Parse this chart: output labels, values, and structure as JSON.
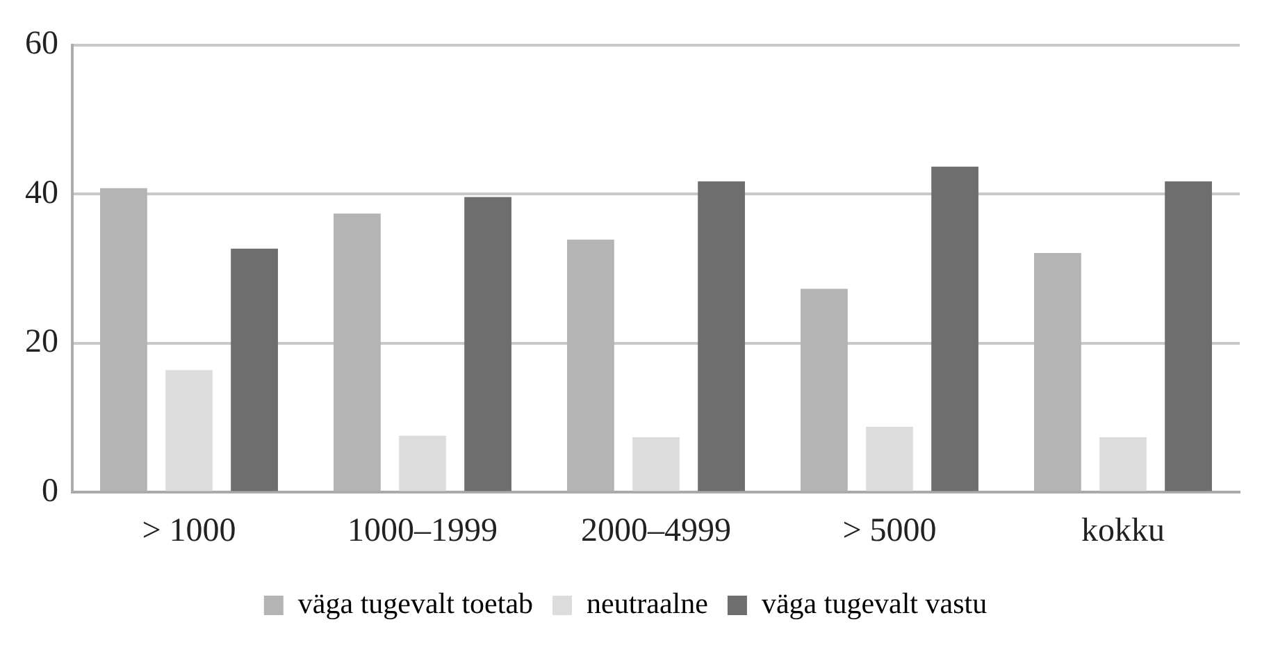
{
  "chart_data": {
    "type": "bar",
    "categories": [
      "> 1000",
      "1000–1999",
      "2000–4999",
      "> 5000",
      "kokku"
    ],
    "series": [
      {
        "name": "väga tugevalt toetab",
        "color": "#b4b4b4",
        "values": [
          40.8,
          37.4,
          33.9,
          27.3,
          32.1
        ]
      },
      {
        "name": "neutraalne",
        "color": "#dcdcdc",
        "values": [
          16.4,
          7.6,
          7.4,
          8.8,
          7.4
        ]
      },
      {
        "name": "väga tugevalt vastu",
        "color": "#6e6e6e",
        "values": [
          32.7,
          39.6,
          41.7,
          43.7,
          41.7
        ]
      }
    ],
    "ylim": [
      0,
      60
    ],
    "yticks": [
      0,
      20,
      40,
      60
    ],
    "grid": "y",
    "legend": "bottom"
  }
}
